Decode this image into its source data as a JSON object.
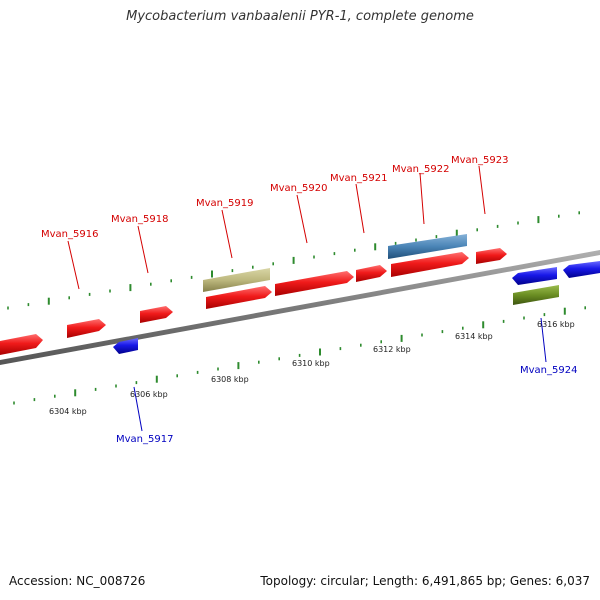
{
  "title": "Mycobacterium vanbaalenii PYR-1, complete genome",
  "footer": {
    "accession": "Accession: NC_008726",
    "stats": "Topology: circular; Length: 6,491,865 bp; Genes: 6,037"
  },
  "colors": {
    "forward_gene": "#e8151b",
    "reverse_gene": "#1414e0",
    "tan": "#b9b57a",
    "steel_blue": "#4b86b8",
    "olive": "#6b8e23",
    "backbone": "#7a7a7a",
    "ticks": "#2e8b2e",
    "label_red": "#d40000",
    "label_blue": "#0000c0"
  },
  "kbp_ticks": [
    "6304 kbp",
    "6306 kbp",
    "6308 kbp",
    "6310 kbp",
    "6312 kbp",
    "6314 kbp",
    "6316 kbp"
  ],
  "gene_labels": [
    {
      "text": "Mvan_5916",
      "strand": "forward"
    },
    {
      "text": "Mvan_5917",
      "strand": "reverse"
    },
    {
      "text": "Mvan_5918",
      "strand": "forward"
    },
    {
      "text": "Mvan_5919",
      "strand": "forward"
    },
    {
      "text": "Mvan_5920",
      "strand": "forward"
    },
    {
      "text": "Mvan_5921",
      "strand": "forward"
    },
    {
      "text": "Mvan_5922",
      "strand": "forward"
    },
    {
      "text": "Mvan_5923",
      "strand": "forward"
    },
    {
      "text": "Mvan_5924",
      "strand": "reverse"
    }
  ]
}
